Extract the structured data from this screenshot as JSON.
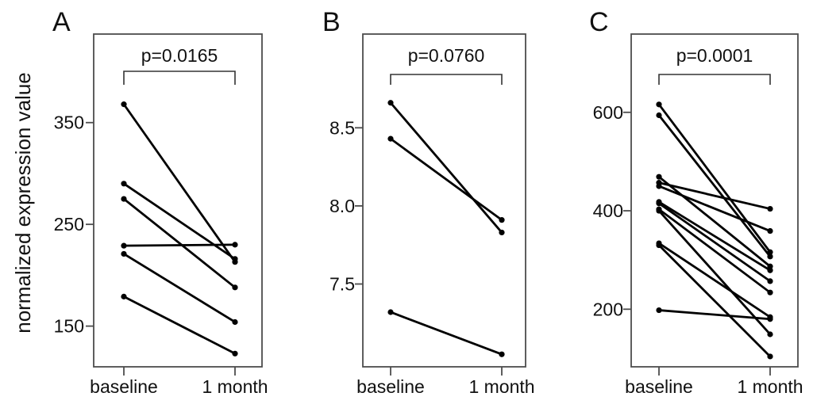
{
  "figure": {
    "y_axis_title": "normalized expression value"
  },
  "style_colors": {
    "data_line": "#000000",
    "frame": "#4d4d4d",
    "text": "#111111",
    "background": "#ffffff"
  },
  "chart_data": [
    {
      "type": "line",
      "subtype": "paired-slopegraph",
      "panel_label": "A",
      "p_label": "p=0.0165",
      "x_categories": [
        "baseline",
        "1 month"
      ],
      "yticks": [
        150,
        250,
        350
      ],
      "ylim": [
        110,
        437
      ],
      "grid": false,
      "legend": "none",
      "pairs": [
        [
          368,
          213
        ],
        [
          290,
          216
        ],
        [
          275,
          188
        ],
        [
          229,
          230
        ],
        [
          221,
          154
        ],
        [
          179,
          123
        ]
      ]
    },
    {
      "type": "line",
      "subtype": "paired-slopegraph",
      "panel_label": "B",
      "p_label": "p=0.0760",
      "x_categories": [
        "baseline",
        "1 month"
      ],
      "yticks": [
        7.5,
        8.0,
        8.5
      ],
      "ylim": [
        6.97,
        9.1
      ],
      "grid": false,
      "legend": "none",
      "pairs": [
        [
          8.66,
          7.83
        ],
        [
          8.43,
          7.91
        ],
        [
          7.32,
          7.05
        ]
      ]
    },
    {
      "type": "line",
      "subtype": "paired-slopegraph",
      "panel_label": "C",
      "p_label": "p=0.0001",
      "x_categories": [
        "baseline",
        "1 month"
      ],
      "yticks": [
        200,
        400,
        600
      ],
      "ylim": [
        83,
        759
      ],
      "grid": false,
      "legend": "none",
      "pairs": [
        [
          616,
          316
        ],
        [
          594,
          307
        ],
        [
          469,
          287
        ],
        [
          457,
          404
        ],
        [
          450,
          359
        ],
        [
          418,
          279
        ],
        [
          415,
          257
        ],
        [
          403,
          234
        ],
        [
          400,
          149
        ],
        [
          334,
          184
        ],
        [
          330,
          104
        ],
        [
          198,
          180
        ]
      ]
    }
  ]
}
